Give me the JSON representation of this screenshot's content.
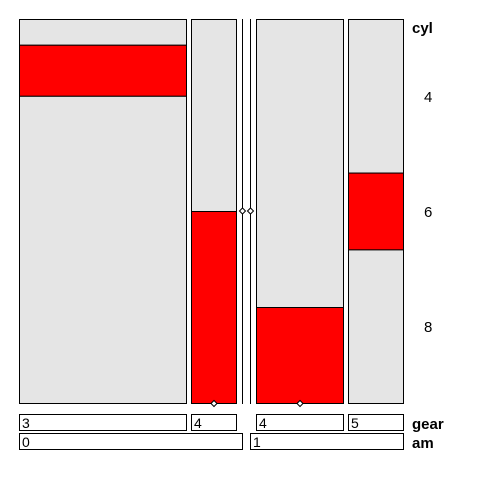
{
  "chart_data": {
    "type": "mosaic",
    "title": "",
    "variables": {
      "y": "cyl",
      "x_inner": "gear",
      "x_outer": "am"
    },
    "y_levels": [
      "4",
      "6",
      "8"
    ],
    "colors": {
      "highlight": "#ff0000",
      "base": "#e5e5e5",
      "border": "#000000"
    },
    "outer_groups": [
      {
        "label": "0",
        "inner_groups": [
          {
            "label": "3",
            "segments": [
              0.067,
              0.133,
              0.8
            ]
          },
          {
            "label": "4",
            "segments": [
              0.5,
              0.5,
              0.0
            ]
          }
        ]
      },
      {
        "label": "1",
        "inner_groups": [
          {
            "label": "4",
            "segments": [
              0.75,
              0.25,
              0.0
            ]
          },
          {
            "label": "5",
            "segments": [
              0.4,
              0.2,
              0.4
            ]
          }
        ]
      }
    ]
  }
}
